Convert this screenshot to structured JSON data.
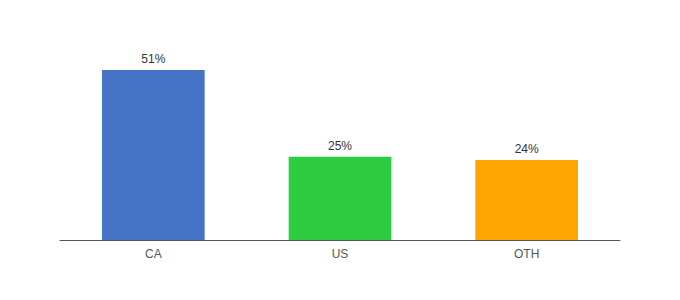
{
  "chart_data": {
    "type": "bar",
    "categories": [
      "CA",
      "US",
      "OTH"
    ],
    "values": [
      51,
      25,
      24
    ],
    "value_labels": [
      "51%",
      "25%",
      "24%"
    ],
    "data_labels": true,
    "colors": [
      "#4472C4",
      "#2ECC40",
      "#FFA500"
    ],
    "ylim": [
      0,
      60
    ],
    "grid": false,
    "tick_labels": "x"
  }
}
